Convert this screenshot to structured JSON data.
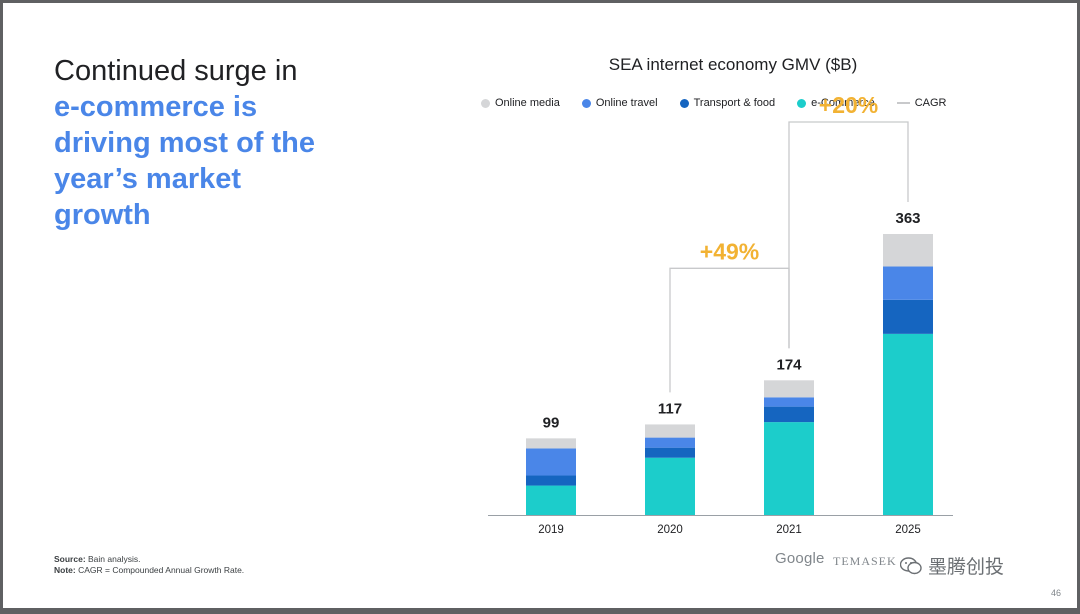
{
  "headline": {
    "line1": "Continued surge in",
    "line2": "e-commerce is",
    "line3": "driving most of the",
    "line4": "year’s market",
    "line5": "growth"
  },
  "footnote": {
    "source_label": "Source:",
    "source_text": " Bain analysis.",
    "note_label": "Note:",
    "note_text": " CAGR = Compounded Annual Growth Rate."
  },
  "logos": {
    "google": "Google",
    "temasek": "TEMASEK",
    "watermark": "墨腾创投"
  },
  "page_number": "46",
  "colors": {
    "online_media": "#d5d6d8",
    "online_travel": "#4a86e8",
    "transport_food": "#1565c0",
    "ecommerce": "#1ccdcb",
    "cagr": "#c8c9cb",
    "cagr_label": "#f2b233",
    "headline_blue": "#4a86e8"
  },
  "chart_data": {
    "type": "bar",
    "stacked": true,
    "title": "SEA internet economy GMV ($B)",
    "categories": [
      "2019",
      "2020",
      "2021",
      "2025"
    ],
    "series": [
      {
        "name": "e-Commerce",
        "values": [
          38,
          74,
          120,
          234
        ]
      },
      {
        "name": "Transport & food",
        "values": [
          13,
          13,
          20,
          44
        ]
      },
      {
        "name": "Online travel",
        "values": [
          35,
          13,
          12,
          43
        ]
      },
      {
        "name": "Online media",
        "values": [
          13,
          17,
          22,
          42
        ]
      }
    ],
    "totals": [
      99,
      117,
      174,
      363
    ],
    "legend": [
      "Online media",
      "Online travel",
      "Transport & food",
      "e-Commerce",
      "CAGR"
    ],
    "legend_placement": "top",
    "cagr": [
      {
        "from": "2020",
        "to": "2021",
        "label": "+49%"
      },
      {
        "from": "2021",
        "to": "2025",
        "label": "+20%"
      }
    ],
    "ylim": [
      0,
      363
    ],
    "grid": false
  }
}
